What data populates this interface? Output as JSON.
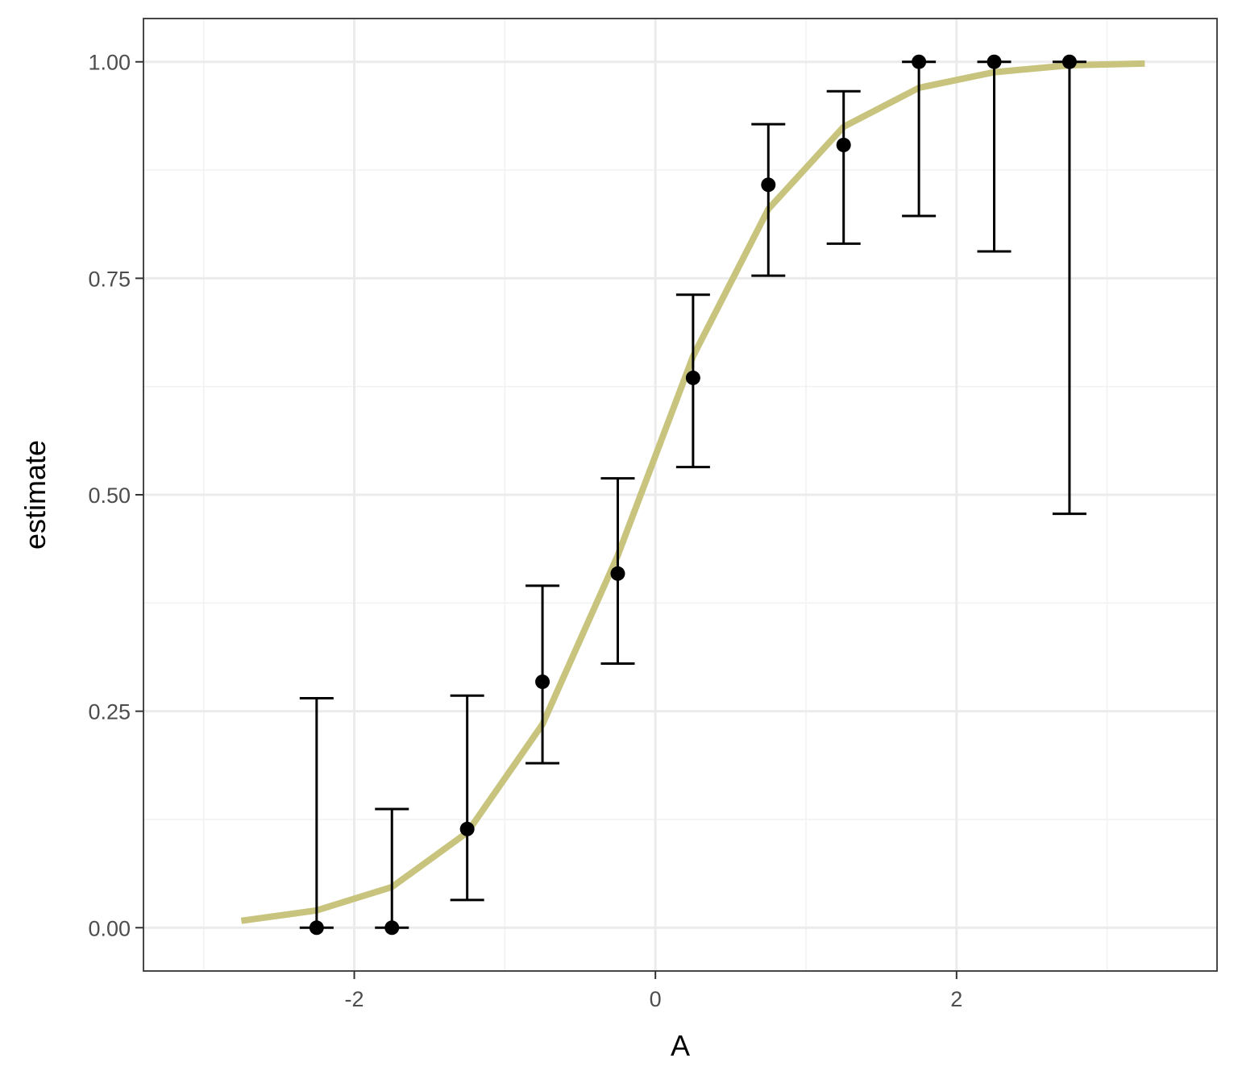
{
  "chart_data": {
    "type": "scatter",
    "title": "",
    "xlabel": "A",
    "ylabel": "estimate",
    "xlim": [
      -3.4,
      3.73
    ],
    "ylim": [
      -0.05,
      1.05
    ],
    "x_ticks": [
      -2,
      0,
      2
    ],
    "x_tick_labels": [
      "-2",
      "0",
      "2"
    ],
    "y_ticks": [
      0,
      0.25,
      0.5,
      0.75,
      1
    ],
    "y_tick_labels": [
      "0.00",
      "0.25",
      "0.50",
      "0.75",
      "1.00"
    ],
    "grid": true,
    "legend": "none",
    "colors": {
      "points": "#000000",
      "error_bars": "#000000",
      "fitted_line": "#c8c47e",
      "grid_major": "#ebebeb",
      "grid_minor": "#f2f2f2",
      "panel_border": "#333333"
    },
    "series": [
      {
        "kind": "points_with_error_bars",
        "x": [
          -2.25,
          -1.75,
          -1.25,
          -0.75,
          -0.25,
          0.25,
          0.75,
          1.25,
          1.75,
          2.25,
          2.75
        ],
        "y": [
          0.0,
          0.0,
          0.114,
          0.284,
          0.409,
          0.635,
          0.858,
          0.904,
          1.0,
          1.0,
          1.0
        ],
        "ymin": [
          0.0,
          0.0,
          0.032,
          0.19,
          0.305,
          0.532,
          0.753,
          0.79,
          0.822,
          0.781,
          0.478
        ],
        "ymax": [
          0.265,
          0.137,
          0.268,
          0.395,
          0.519,
          0.731,
          0.928,
          0.966,
          1.0,
          1.0,
          1.0
        ]
      },
      {
        "kind": "fitted_line",
        "x": [
          -2.75,
          -2.25,
          -1.75,
          -1.25,
          -0.75,
          -0.25,
          0.25,
          0.75,
          1.25,
          1.75,
          2.25,
          2.75,
          3.25
        ],
        "y": [
          0.008,
          0.02,
          0.047,
          0.11,
          0.235,
          0.43,
          0.66,
          0.83,
          0.925,
          0.97,
          0.988,
          0.996,
          0.998
        ]
      }
    ]
  }
}
